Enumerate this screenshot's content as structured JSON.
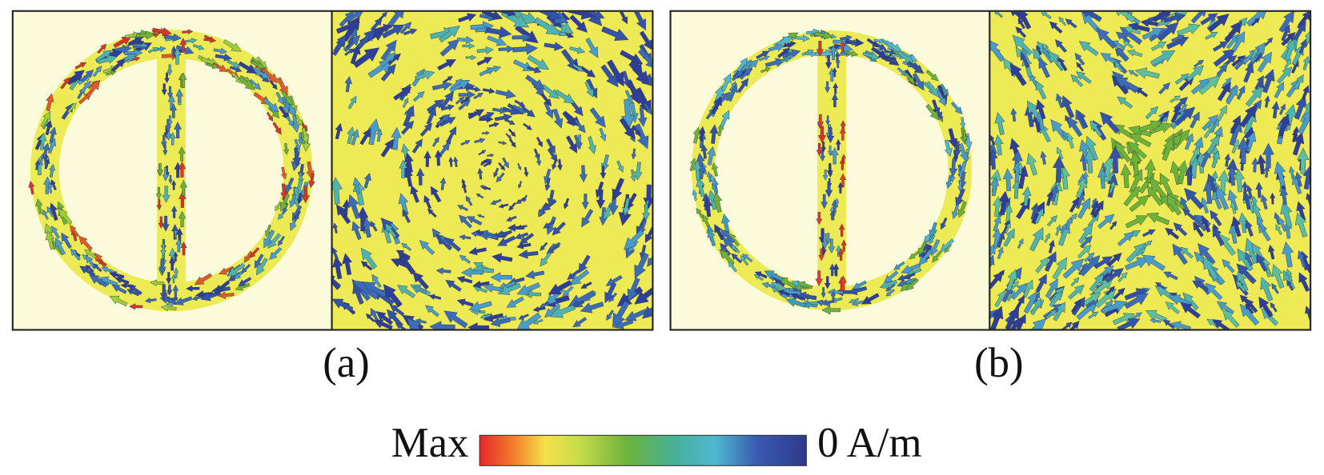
{
  "panels": [
    {
      "label": "(a)"
    },
    {
      "label": "(b)"
    }
  ],
  "colorbar": {
    "max_label": "Max",
    "min_label": "0 A/m"
  }
}
